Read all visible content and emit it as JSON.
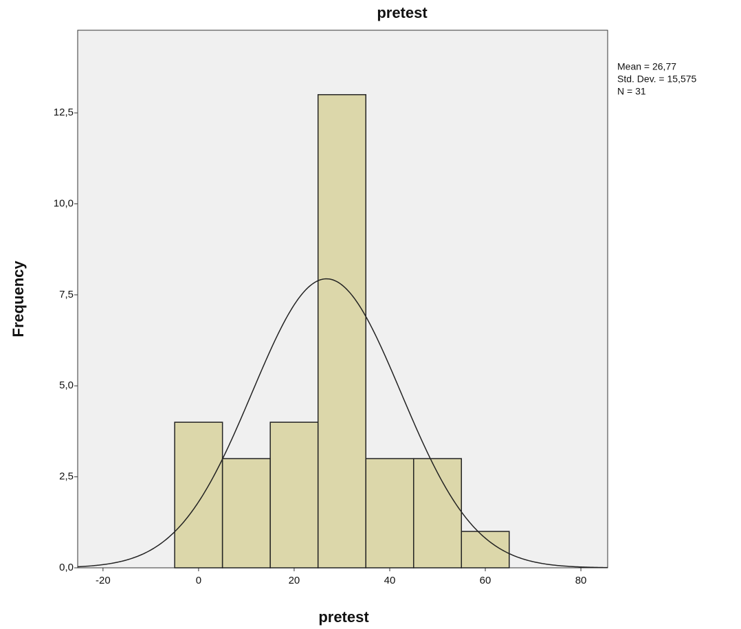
{
  "chart_data": {
    "type": "histogram",
    "title": "pretest",
    "x_label": "pretest",
    "y_label": "Frequency",
    "bins": [
      -5,
      5,
      15,
      25,
      35,
      45,
      55,
      65
    ],
    "counts": [
      4,
      3,
      4,
      13,
      3,
      3,
      1
    ],
    "color": "#d8d29e",
    "xlim": [
      -25.3,
      85.6
    ],
    "ylim": [
      0,
      14.77
    ],
    "xticks": [
      -20,
      0,
      20,
      40,
      60,
      80
    ],
    "yticks": [
      {
        "value": 0,
        "label": "0,0"
      },
      {
        "value": 2.5,
        "label": "2,5"
      },
      {
        "value": 5,
        "label": "5,0"
      },
      {
        "value": 7.5,
        "label": "7,5"
      },
      {
        "value": 10,
        "label": "10,0"
      },
      {
        "value": 12.5,
        "label": "12,5"
      }
    ],
    "normal_curve": true,
    "stats": [
      {
        "value": 26.77,
        "label": "Mean = 26,77"
      },
      {
        "value": 15.575,
        "label": "Std. Dev. = 15,575"
      },
      {
        "value": 31,
        "label": "N = 31"
      }
    ]
  }
}
